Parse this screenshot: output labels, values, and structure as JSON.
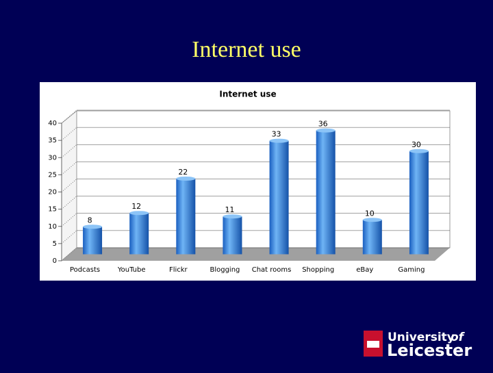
{
  "slide_title": "Internet use",
  "chart_data": {
    "type": "bar",
    "title": "Internet use",
    "categories": [
      "Podcasts",
      "YouTube",
      "Flickr",
      "Blogging",
      "Chat rooms",
      "Shopping",
      "eBay",
      "Gaming"
    ],
    "values": [
      8,
      12,
      22,
      11,
      33,
      36,
      10,
      30
    ],
    "color": "#3a8ee6",
    "ylim": [
      0,
      40
    ],
    "yticks": [
      0,
      5,
      10,
      15,
      20,
      25,
      30,
      35,
      40
    ],
    "grid": true
  },
  "logo": {
    "word1": "University",
    "word2": "of",
    "word3": "Leicester"
  }
}
